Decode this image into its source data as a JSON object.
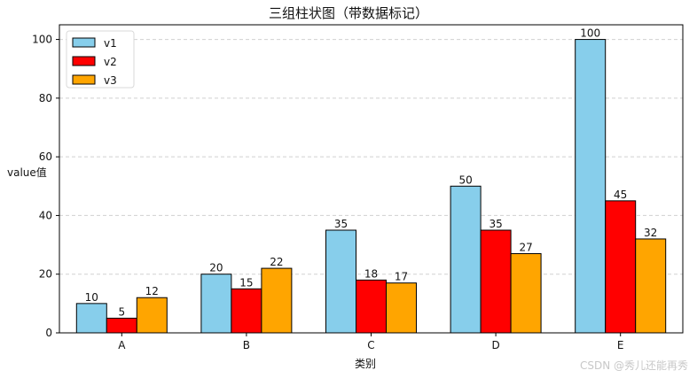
{
  "chart_data": {
    "type": "bar",
    "title": "三组柱状图（带数据标记）",
    "xlabel": "类别",
    "ylabel": "value值",
    "categories": [
      "A",
      "B",
      "C",
      "D",
      "E"
    ],
    "series": [
      {
        "name": "v1",
        "values": [
          10,
          20,
          35,
          50,
          100
        ],
        "color": "#87CEEB"
      },
      {
        "name": "v2",
        "values": [
          5,
          15,
          18,
          35,
          45
        ],
        "color": "#FF0000"
      },
      {
        "name": "v3",
        "values": [
          12,
          22,
          17,
          27,
          32
        ],
        "color": "#FFA500"
      }
    ],
    "ylim": [
      0,
      105
    ],
    "yticks": [
      0,
      20,
      40,
      60,
      80,
      100
    ],
    "grid": "horizontal-dashed",
    "legend": "top-left"
  },
  "watermark": "CSDN @秀儿还能再秀"
}
